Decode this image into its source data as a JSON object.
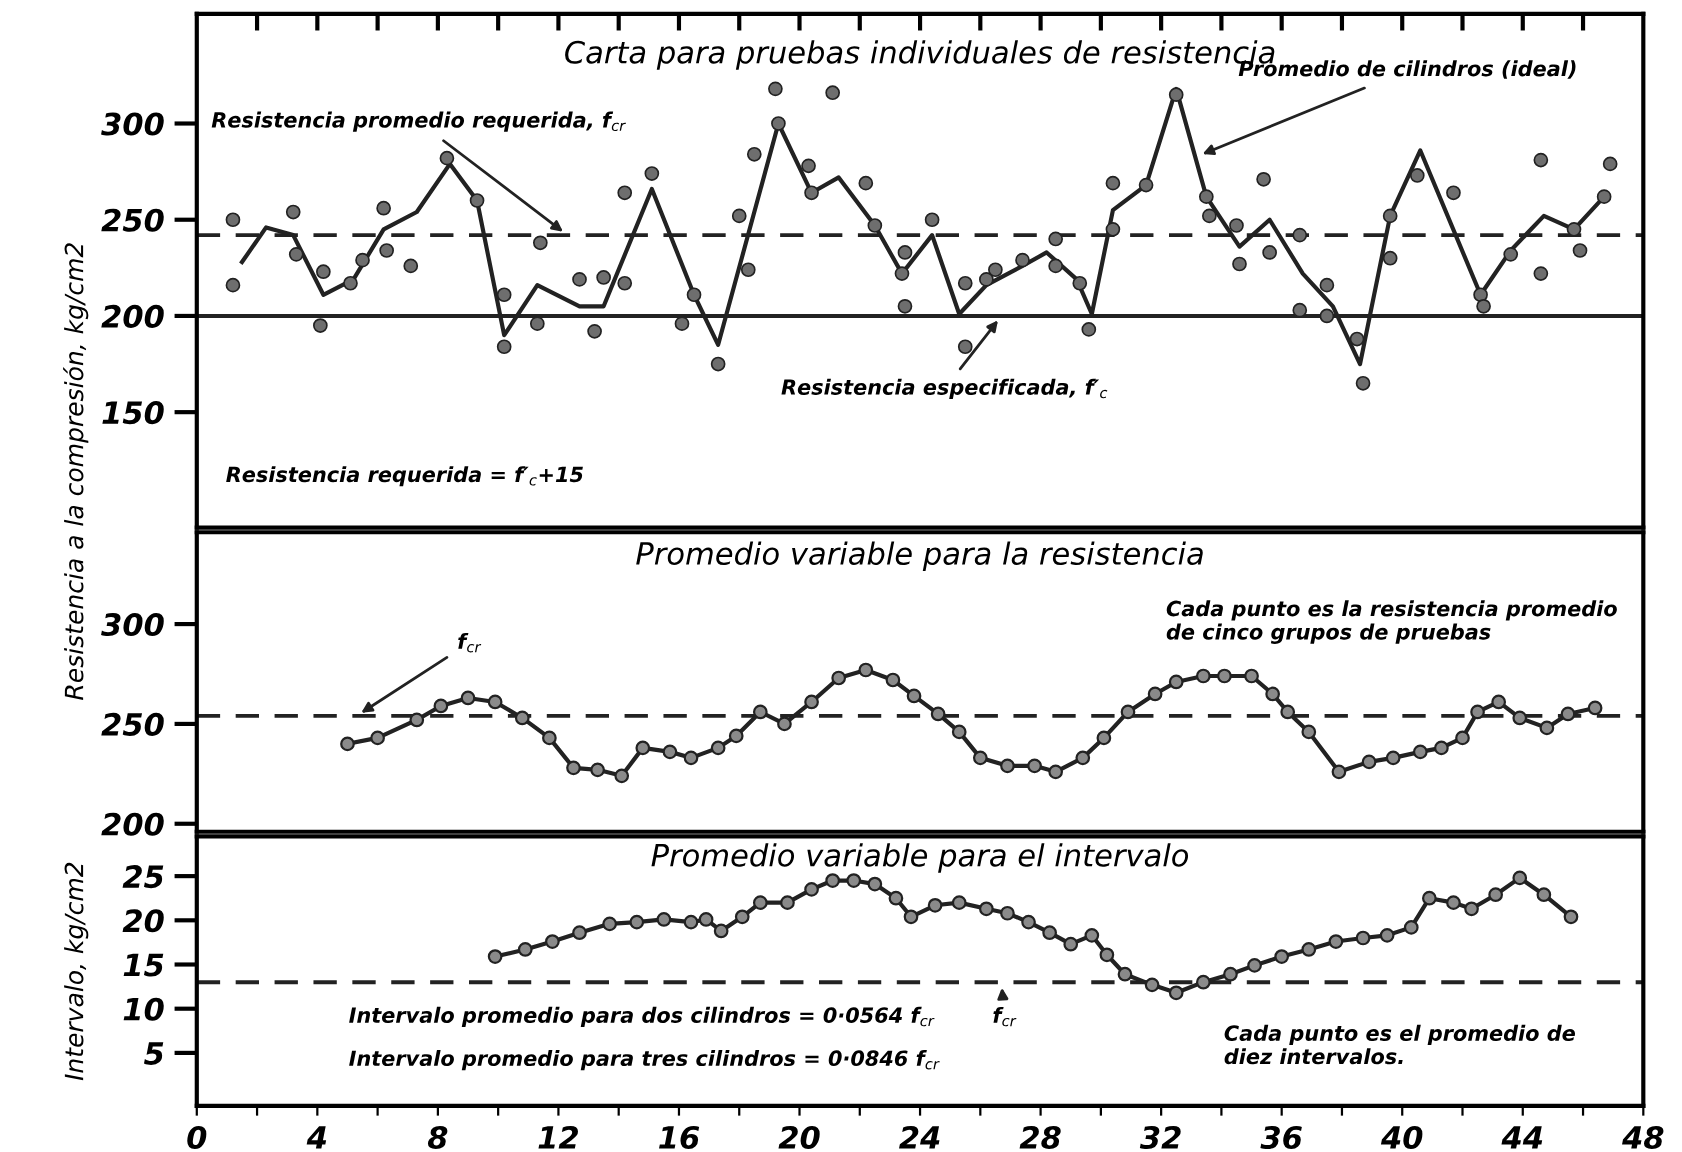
{
  "chart_data": [
    {
      "type": "line",
      "title": "Carta para pruebas individuales de resistencia",
      "ylabel": "Resistencia a la compresión, kg/cm2",
      "xlim": [
        0,
        48
      ],
      "ylim": [
        90,
        357
      ],
      "yticks": [
        150,
        200,
        250,
        300
      ],
      "xticks": [
        {
          "value": 2,
          "label": null
        },
        {
          "value": 4,
          "label": null
        },
        {
          "value": 6,
          "label": null
        },
        {
          "value": 8,
          "label": null
        },
        {
          "value": 10,
          "label": null
        },
        {
          "value": 12,
          "label": null
        },
        {
          "value": 14,
          "label": null
        },
        {
          "value": 16,
          "label": null
        },
        {
          "value": 18,
          "label": null
        },
        {
          "value": 20,
          "label": null
        },
        {
          "value": 22,
          "label": null
        },
        {
          "value": 24,
          "label": null
        },
        {
          "value": 26,
          "label": null
        },
        {
          "value": 28,
          "label": null
        },
        {
          "value": 30,
          "label": null
        },
        {
          "value": 32,
          "label": null
        },
        {
          "value": 34,
          "label": null
        },
        {
          "value": 36,
          "label": null
        },
        {
          "value": 38,
          "label": null
        },
        {
          "value": 40,
          "label": null
        },
        {
          "value": 42,
          "label": null
        },
        {
          "value": 44,
          "label": null
        },
        {
          "value": 46,
          "label": null
        }
      ],
      "tick_labels": "y",
      "grid": false,
      "legend": false,
      "series": [
        {
          "color": "#222222",
          "marker": "none",
          "line_style": "solid",
          "x": [
            1.5,
            2.3,
            3.2,
            4.2,
            5.2,
            6.2,
            7.3,
            8.4,
            9.3,
            10.2,
            11.3,
            12.7,
            13.5,
            15.1,
            16.5,
            17.3,
            19.3,
            20.4,
            21.3,
            22.5,
            23.4,
            24.4,
            25.3,
            26.2,
            27.4,
            28.2,
            29.2,
            29.7,
            30.4,
            31.5,
            32.5,
            33.5,
            34.6,
            35.6,
            36.7,
            37.7,
            38.6,
            39.6,
            40.6,
            42.6,
            43.6,
            44.7,
            45.7,
            46.7
          ],
          "values": [
            228,
            246,
            242,
            211,
            219,
            245,
            254,
            279,
            260,
            190,
            216,
            205,
            205,
            266,
            211,
            185,
            300,
            264,
            272,
            247,
            222,
            242,
            201,
            216,
            226,
            233,
            219,
            201,
            255,
            268,
            318,
            262,
            236,
            250,
            222,
            205,
            175,
            252,
            286,
            211,
            234,
            252,
            245,
            262
          ]
        },
        {
          "type": "scatter",
          "color": "#6e6e6e",
          "marker": "circle",
          "x": [
            1.2,
            1.2,
            3.2,
            4.1,
            3.3,
            4.2,
            5.1,
            5.5,
            6.2,
            6.3,
            7.1,
            8.3,
            9.3,
            10.2,
            10.2,
            11.3,
            11.4,
            12.7,
            13.2,
            13.5,
            14.2,
            14.2,
            15.1,
            16.1,
            16.5,
            17.3,
            18.0,
            18.3,
            18.5,
            19.2,
            19.3,
            20.3,
            20.4,
            21.1,
            22.2,
            22.5,
            23.4,
            23.5,
            23.5,
            24.4,
            25.5,
            25.5,
            26.2,
            26.5,
            27.4,
            28.5,
            28.5,
            29.3,
            29.6,
            30.4,
            30.4,
            31.5,
            32.5,
            33.5,
            33.6,
            34.5,
            34.6,
            35.4,
            35.6,
            36.6,
            36.6,
            37.5,
            37.5,
            38.5,
            38.7,
            39.6,
            39.6,
            40.5,
            41.7,
            42.6,
            42.7,
            43.6,
            44.6,
            44.6,
            45.7,
            45.9,
            46.7,
            46.9
          ],
          "values": [
            250,
            216,
            254,
            195,
            232,
            223,
            217,
            229,
            256,
            234,
            226,
            282,
            260,
            211,
            184,
            196,
            238,
            219,
            192,
            220,
            217,
            264,
            274,
            196,
            211,
            175,
            252,
            224,
            284,
            318,
            300,
            278,
            264,
            316,
            269,
            247,
            222,
            233,
            205,
            250,
            184,
            217,
            219,
            224,
            229,
            240,
            226,
            217,
            193,
            269,
            245,
            268,
            315,
            262,
            252,
            247,
            227,
            271,
            233,
            242,
            203,
            216,
            200,
            188,
            165,
            252,
            230,
            273,
            264,
            211,
            205,
            232,
            222,
            281,
            245,
            234,
            262,
            279
          ]
        }
      ],
      "ref_lines": [
        {
          "axis": "y",
          "value": 242,
          "line_style": "dashed",
          "color": "#222222"
        },
        {
          "axis": "y",
          "value": 200,
          "line_style": "solid",
          "color": "#222222"
        }
      ],
      "annotations": [
        {
          "text": "Resistencia promedio requerida, f$_{cr}$",
          "x": 12.3,
          "y": 242
        },
        {
          "text": "Promedio de cilindros (ideal)",
          "x": 33.2,
          "y": 283
        },
        {
          "text": "Resistencia especificada, f′$_{c}$",
          "x": 26.7,
          "y": 200
        },
        "Resistencia requerida = f′$_{c}$+15"
      ]
    },
    {
      "type": "line",
      "title": "Promedio variable para la resistencia",
      "xlim": [
        0,
        48
      ],
      "ylim": [
        196,
        346
      ],
      "yticks": [
        200,
        250,
        300
      ],
      "tick_labels": "y",
      "grid": false,
      "legend": false,
      "series": [
        {
          "color": "#222222",
          "marker": "circle",
          "line_style": "solid",
          "x": [
            5.0,
            6.0,
            7.3,
            8.1,
            9.0,
            9.9,
            10.8,
            11.7,
            12.5,
            13.3,
            14.1,
            14.8,
            15.7,
            16.4,
            17.3,
            17.9,
            18.7,
            19.5,
            20.4,
            21.3,
            22.2,
            23.1,
            23.8,
            24.6,
            25.3,
            26.0,
            26.9,
            27.8,
            28.5,
            29.4,
            30.1,
            30.9,
            31.8,
            32.5,
            33.4,
            34.1,
            35.0,
            35.7,
            36.2,
            36.9,
            37.9,
            38.9,
            39.7,
            40.6,
            41.3,
            42.0,
            42.5,
            43.2,
            43.9,
            44.8,
            45.5,
            46.4
          ],
          "values": [
            240,
            243,
            252,
            259,
            263,
            261,
            253,
            243,
            228,
            227,
            224,
            238,
            236,
            233,
            238,
            244,
            256,
            250,
            261,
            273,
            277,
            272,
            264,
            255,
            246,
            233,
            229,
            229,
            226,
            233,
            243,
            256,
            265,
            271,
            274,
            274,
            274,
            265,
            256,
            246,
            226,
            231,
            233,
            236,
            238,
            243,
            256,
            261,
            253,
            248,
            255,
            258
          ]
        }
      ],
      "ref_lines": [
        {
          "axis": "y",
          "value": 254,
          "line_style": "dashed",
          "color": "#222222"
        }
      ],
      "annotations": [
        "Cada punto es la resistencia promedio\nde cinco grupos de pruebas",
        {
          "text": "f$_{cr}$",
          "x": 5.3,
          "y": 254
        }
      ]
    },
    {
      "type": "line",
      "title": "Promedio variable para el intervalo",
      "ylabel": "Intervalo, kg/cm2",
      "xlim": [
        0,
        48
      ],
      "ylim": [
        -1,
        29.5
      ],
      "yticks": [
        5,
        10,
        15,
        20,
        25
      ],
      "xticks": [
        0,
        {
          "value": 2,
          "label": null
        },
        4,
        {
          "value": 6,
          "label": null
        },
        8,
        {
          "value": 10,
          "label": null
        },
        12,
        {
          "value": 14,
          "label": null
        },
        16,
        {
          "value": 18,
          "label": null
        },
        20,
        {
          "value": 22,
          "label": null
        },
        24,
        {
          "value": 26,
          "label": null
        },
        28,
        {
          "value": 30,
          "label": null
        },
        32,
        {
          "value": 34,
          "label": null
        },
        36,
        {
          "value": 38,
          "label": null
        },
        40,
        {
          "value": 42,
          "label": null
        },
        44,
        {
          "value": 46,
          "label": null
        },
        48
      ],
      "grid": false,
      "legend": false,
      "series": [
        {
          "color": "#222222",
          "marker": "circle",
          "line_style": "solid",
          "x": [
            9.9,
            10.9,
            11.8,
            12.7,
            13.7,
            14.6,
            15.5,
            16.4,
            16.9,
            17.4,
            18.1,
            18.7,
            19.6,
            20.4,
            21.1,
            21.8,
            22.5,
            23.2,
            23.7,
            24.5,
            25.3,
            26.2,
            26.9,
            27.6,
            28.3,
            29.0,
            29.7,
            30.2,
            30.8,
            31.7,
            32.5,
            33.4,
            34.3,
            35.1,
            36.0,
            36.9,
            37.8,
            38.7,
            39.5,
            40.3,
            40.9,
            41.7,
            42.3,
            43.1,
            43.9,
            44.7,
            45.6
          ],
          "values": [
            15.9,
            16.7,
            17.6,
            18.6,
            19.6,
            19.8,
            20.1,
            19.8,
            20.1,
            18.8,
            20.4,
            22.0,
            22.0,
            23.5,
            24.5,
            24.5,
            24.1,
            22.5,
            20.4,
            21.7,
            22.0,
            21.3,
            20.8,
            19.8,
            18.6,
            17.3,
            18.3,
            16.1,
            13.9,
            12.7,
            11.8,
            13.0,
            13.9,
            14.9,
            15.9,
            16.7,
            17.6,
            18.0,
            18.3,
            19.2,
            22.5,
            22.0,
            21.3,
            22.9,
            24.8,
            22.9,
            20.4
          ]
        }
      ],
      "ref_lines": [
        {
          "axis": "y",
          "value": 13,
          "line_style": "dashed",
          "color": "#222222"
        }
      ],
      "annotations": [
        "Intervalo promedio para dos cilindros = 0·0564 f$_{cr}$",
        {
          "text": "f$_{cr}$",
          "x": 26.7,
          "y": 13
        },
        "Intervalo promedio para tres cilindros = 0·0846 f$_{cr}$",
        "Cada punto es el promedio de\ndiez intervalos."
      ]
    }
  ]
}
